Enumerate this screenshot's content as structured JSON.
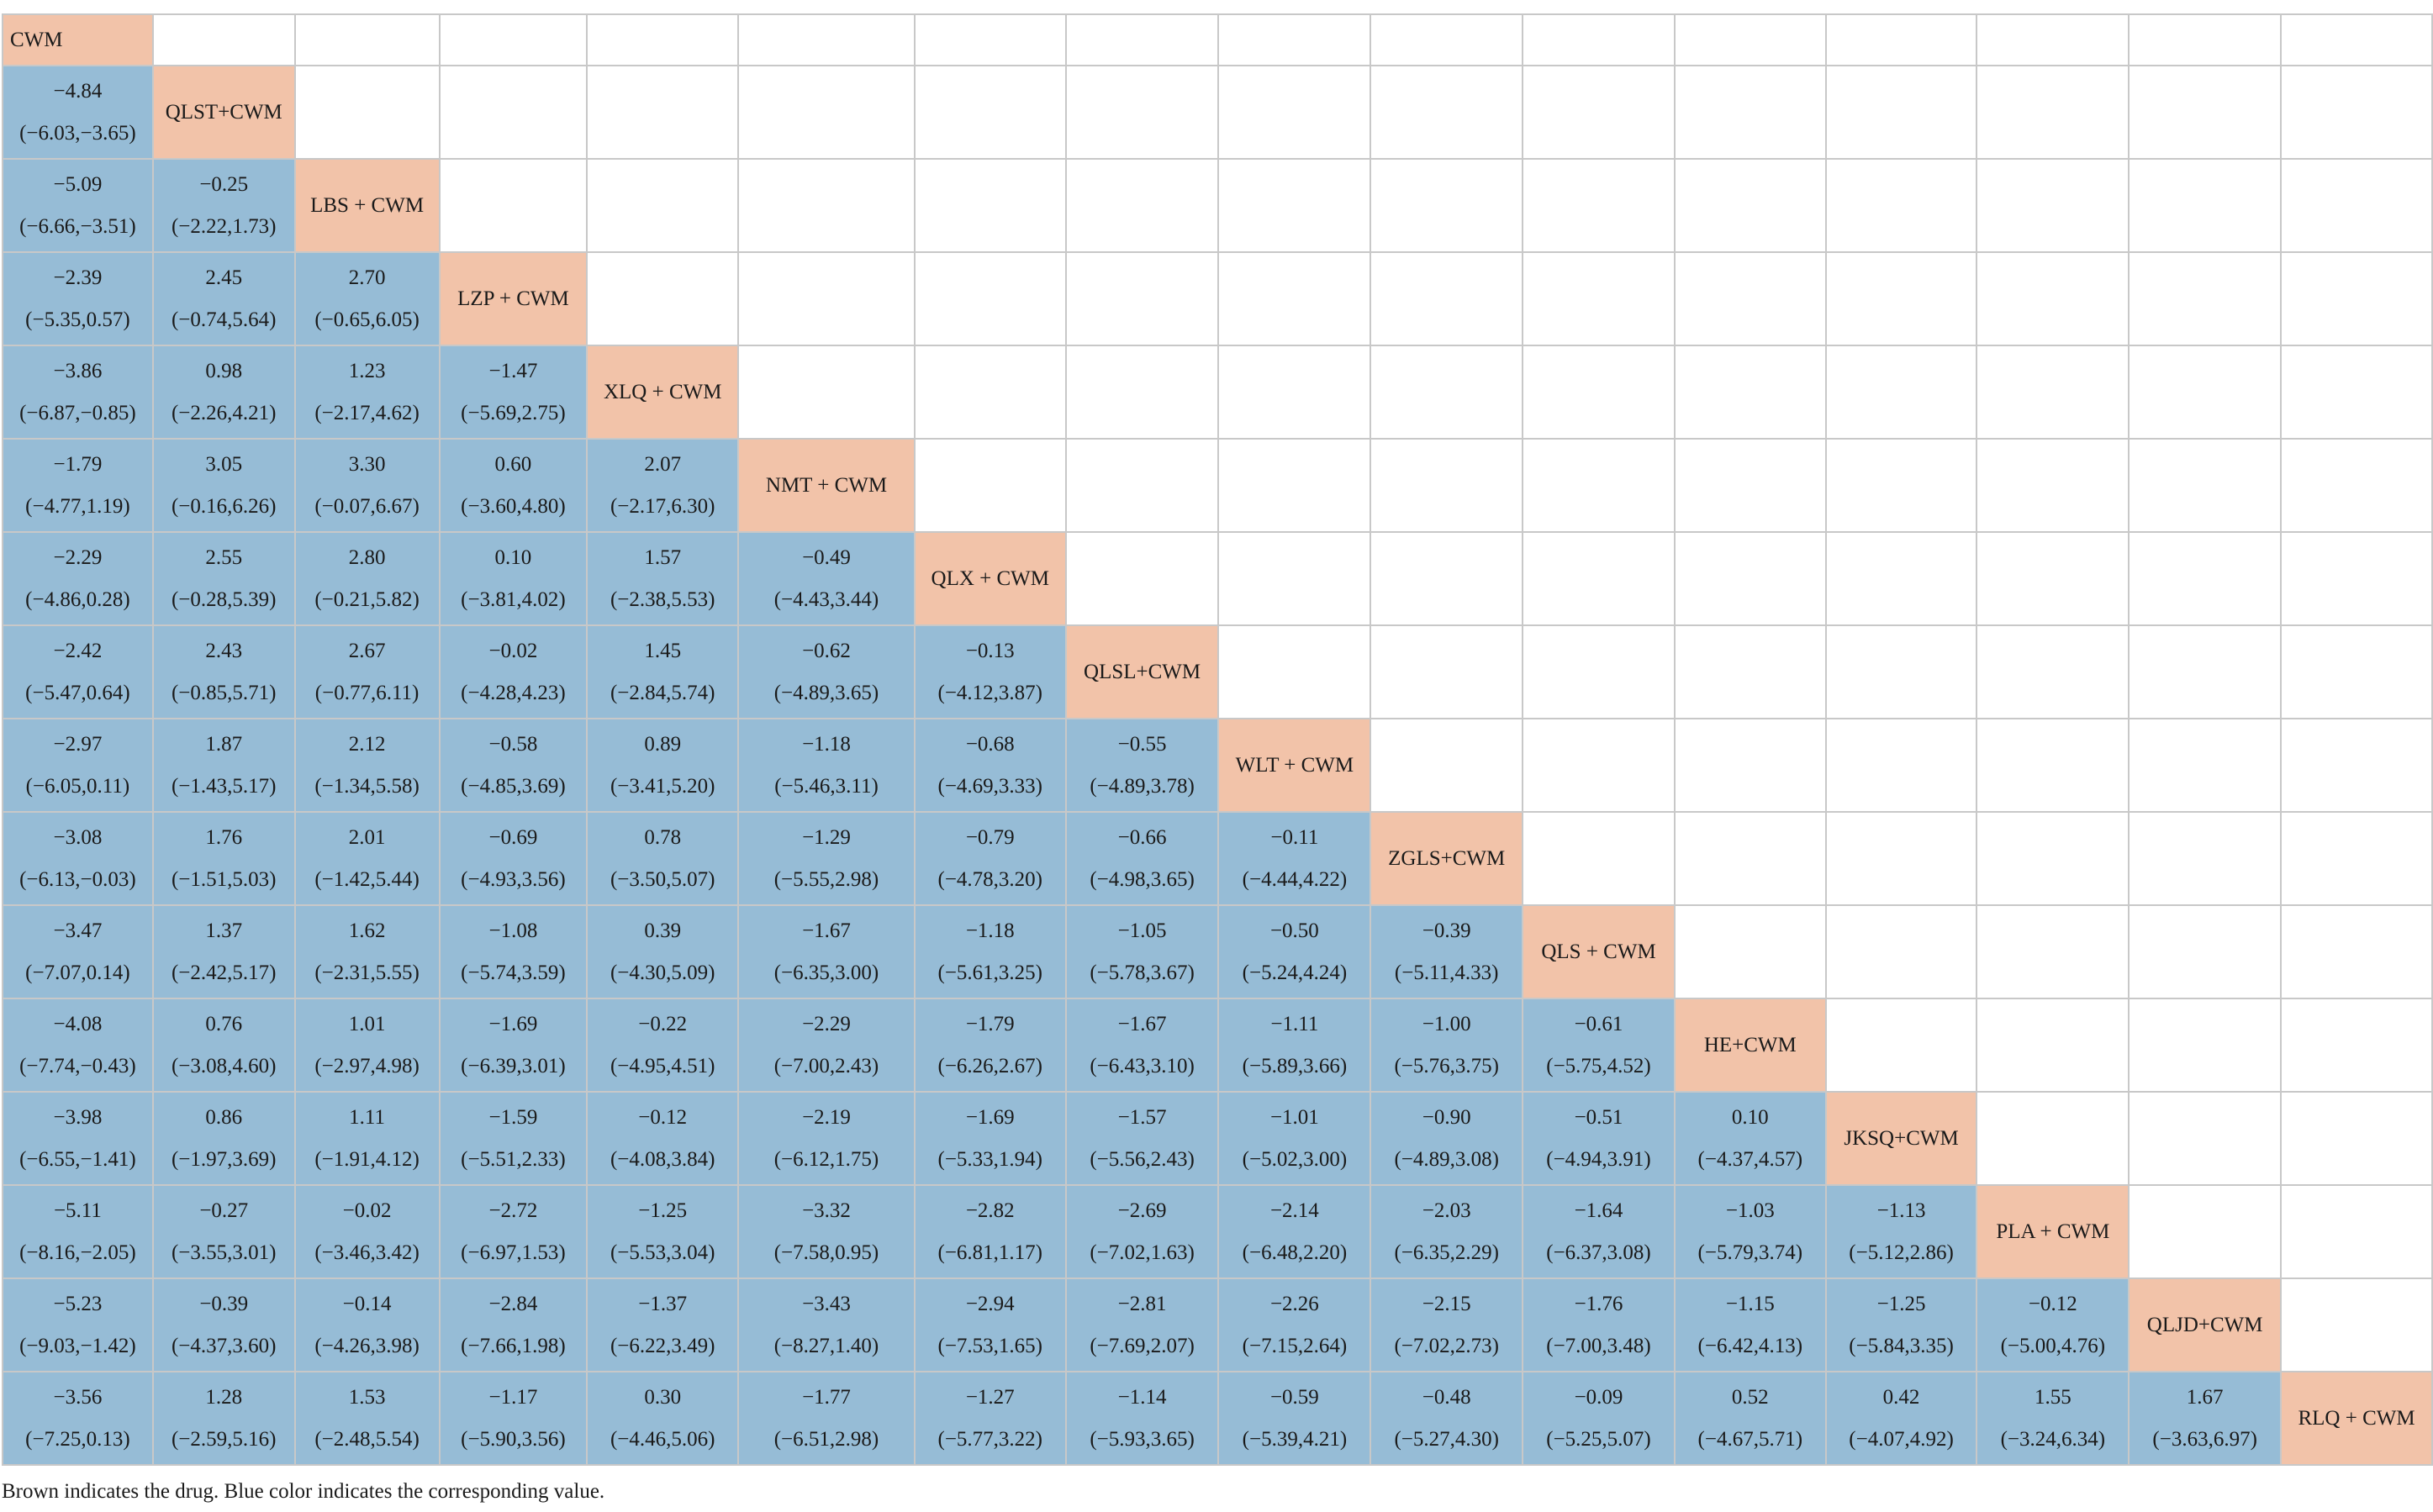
{
  "colors": {
    "drug_cell": "#f2c3a9",
    "value_cell": "#96bcd6",
    "grid": "#c8c8c8"
  },
  "table": {
    "drugs": [
      "CWM",
      "QLST+CWM",
      "LBS + CWM",
      "LZP + CWM",
      "XLQ + CWM",
      "NMT + CWM",
      "QLX + CWM",
      "QLSL+CWM",
      "WLT + CWM",
      "ZGLS+CWM",
      "QLS + CWM",
      "HE+CWM",
      "JKSQ+CWM",
      "PLA + CWM",
      "QLJD+CWM",
      "RLQ + CWM"
    ],
    "values": [
      [],
      [
        [
          "−4.84",
          "(−6.03,−3.65)"
        ]
      ],
      [
        [
          "−5.09",
          "(−6.66,−3.51)"
        ],
        [
          "−0.25",
          "(−2.22,1.73)"
        ]
      ],
      [
        [
          "−2.39",
          "(−5.35,0.57)"
        ],
        [
          "2.45",
          "(−0.74,5.64)"
        ],
        [
          "2.70",
          "(−0.65,6.05)"
        ]
      ],
      [
        [
          "−3.86",
          "(−6.87,−0.85)"
        ],
        [
          "0.98",
          "(−2.26,4.21)"
        ],
        [
          "1.23",
          "(−2.17,4.62)"
        ],
        [
          "−1.47",
          "(−5.69,2.75)"
        ]
      ],
      [
        [
          "−1.79",
          "(−4.77,1.19)"
        ],
        [
          "3.05",
          "(−0.16,6.26)"
        ],
        [
          "3.30",
          "(−0.07,6.67)"
        ],
        [
          "0.60",
          "(−3.60,4.80)"
        ],
        [
          "2.07",
          "(−2.17,6.30)"
        ]
      ],
      [
        [
          "−2.29",
          "(−4.86,0.28)"
        ],
        [
          "2.55",
          "(−0.28,5.39)"
        ],
        [
          "2.80",
          "(−0.21,5.82)"
        ],
        [
          "0.10",
          "(−3.81,4.02)"
        ],
        [
          "1.57",
          "(−2.38,5.53)"
        ],
        [
          "−0.49",
          "(−4.43,3.44)"
        ]
      ],
      [
        [
          "−2.42",
          "(−5.47,0.64)"
        ],
        [
          "2.43",
          "(−0.85,5.71)"
        ],
        [
          "2.67",
          "(−0.77,6.11)"
        ],
        [
          "−0.02",
          "(−4.28,4.23)"
        ],
        [
          "1.45",
          "(−2.84,5.74)"
        ],
        [
          "−0.62",
          "(−4.89,3.65)"
        ],
        [
          "−0.13",
          "(−4.12,3.87)"
        ]
      ],
      [
        [
          "−2.97",
          "(−6.05,0.11)"
        ],
        [
          "1.87",
          "(−1.43,5.17)"
        ],
        [
          "2.12",
          "(−1.34,5.58)"
        ],
        [
          "−0.58",
          "(−4.85,3.69)"
        ],
        [
          "0.89",
          "(−3.41,5.20)"
        ],
        [
          "−1.18",
          "(−5.46,3.11)"
        ],
        [
          "−0.68",
          "(−4.69,3.33)"
        ],
        [
          "−0.55",
          "(−4.89,3.78)"
        ]
      ],
      [
        [
          "−3.08",
          "(−6.13,−0.03)"
        ],
        [
          "1.76",
          "(−1.51,5.03)"
        ],
        [
          "2.01",
          "(−1.42,5.44)"
        ],
        [
          "−0.69",
          "(−4.93,3.56)"
        ],
        [
          "0.78",
          "(−3.50,5.07)"
        ],
        [
          "−1.29",
          "(−5.55,2.98)"
        ],
        [
          "−0.79",
          "(−4.78,3.20)"
        ],
        [
          "−0.66",
          "(−4.98,3.65)"
        ],
        [
          "−0.11",
          "(−4.44,4.22)"
        ]
      ],
      [
        [
          "−3.47",
          "(−7.07,0.14)"
        ],
        [
          "1.37",
          "(−2.42,5.17)"
        ],
        [
          "1.62",
          "(−2.31,5.55)"
        ],
        [
          "−1.08",
          "(−5.74,3.59)"
        ],
        [
          "0.39",
          "(−4.30,5.09)"
        ],
        [
          "−1.67",
          "(−6.35,3.00)"
        ],
        [
          "−1.18",
          "(−5.61,3.25)"
        ],
        [
          "−1.05",
          "(−5.78,3.67)"
        ],
        [
          "−0.50",
          "(−5.24,4.24)"
        ],
        [
          "−0.39",
          "(−5.11,4.33)"
        ]
      ],
      [
        [
          "−4.08",
          "(−7.74,−0.43)"
        ],
        [
          "0.76",
          "(−3.08,4.60)"
        ],
        [
          "1.01",
          "(−2.97,4.98)"
        ],
        [
          "−1.69",
          "(−6.39,3.01)"
        ],
        [
          "−0.22",
          "(−4.95,4.51)"
        ],
        [
          "−2.29",
          "(−7.00,2.43)"
        ],
        [
          "−1.79",
          "(−6.26,2.67)"
        ],
        [
          "−1.67",
          "(−6.43,3.10)"
        ],
        [
          "−1.11",
          "(−5.89,3.66)"
        ],
        [
          "−1.00",
          "(−5.76,3.75)"
        ],
        [
          "−0.61",
          "(−5.75,4.52)"
        ]
      ],
      [
        [
          "−3.98",
          "(−6.55,−1.41)"
        ],
        [
          "0.86",
          "(−1.97,3.69)"
        ],
        [
          "1.11",
          "(−1.91,4.12)"
        ],
        [
          "−1.59",
          "(−5.51,2.33)"
        ],
        [
          "−0.12",
          "(−4.08,3.84)"
        ],
        [
          "−2.19",
          "(−6.12,1.75)"
        ],
        [
          "−1.69",
          "(−5.33,1.94)"
        ],
        [
          "−1.57",
          "(−5.56,2.43)"
        ],
        [
          "−1.01",
          "(−5.02,3.00)"
        ],
        [
          "−0.90",
          "(−4.89,3.08)"
        ],
        [
          "−0.51",
          "(−4.94,3.91)"
        ],
        [
          "0.10",
          "(−4.37,4.57)"
        ]
      ],
      [
        [
          "−5.11",
          "(−8.16,−2.05)"
        ],
        [
          "−0.27",
          "(−3.55,3.01)"
        ],
        [
          "−0.02",
          "(−3.46,3.42)"
        ],
        [
          "−2.72",
          "(−6.97,1.53)"
        ],
        [
          "−1.25",
          "(−5.53,3.04)"
        ],
        [
          "−3.32",
          "(−7.58,0.95)"
        ],
        [
          "−2.82",
          "(−6.81,1.17)"
        ],
        [
          "−2.69",
          "(−7.02,1.63)"
        ],
        [
          "−2.14",
          "(−6.48,2.20)"
        ],
        [
          "−2.03",
          "(−6.35,2.29)"
        ],
        [
          "−1.64",
          "(−6.37,3.08)"
        ],
        [
          "−1.03",
          "(−5.79,3.74)"
        ],
        [
          "−1.13",
          "(−5.12,2.86)"
        ]
      ],
      [
        [
          "−5.23",
          "(−9.03,−1.42)"
        ],
        [
          "−0.39",
          "(−4.37,3.60)"
        ],
        [
          "−0.14",
          "(−4.26,3.98)"
        ],
        [
          "−2.84",
          "(−7.66,1.98)"
        ],
        [
          "−1.37",
          "(−6.22,3.49)"
        ],
        [
          "−3.43",
          "(−8.27,1.40)"
        ],
        [
          "−2.94",
          "(−7.53,1.65)"
        ],
        [
          "−2.81",
          "(−7.69,2.07)"
        ],
        [
          "−2.26",
          "(−7.15,2.64)"
        ],
        [
          "−2.15",
          "(−7.02,2.73)"
        ],
        [
          "−1.76",
          "(−7.00,3.48)"
        ],
        [
          "−1.15",
          "(−6.42,4.13)"
        ],
        [
          "−1.25",
          "(−5.84,3.35)"
        ],
        [
          "−0.12",
          "(−5.00,4.76)"
        ]
      ],
      [
        [
          "−3.56",
          "(−7.25,0.13)"
        ],
        [
          "1.28",
          "(−2.59,5.16)"
        ],
        [
          "1.53",
          "(−2.48,5.54)"
        ],
        [
          "−1.17",
          "(−5.90,3.56)"
        ],
        [
          "0.30",
          "(−4.46,5.06)"
        ],
        [
          "−1.77",
          "(−6.51,2.98)"
        ],
        [
          "−1.27",
          "(−5.77,3.22)"
        ],
        [
          "−1.14",
          "(−5.93,3.65)"
        ],
        [
          "−0.59",
          "(−5.39,4.21)"
        ],
        [
          "−0.48",
          "(−5.27,4.30)"
        ],
        [
          "−0.09",
          "(−5.25,5.07)"
        ],
        [
          "0.52",
          "(−4.67,5.71)"
        ],
        [
          "0.42",
          "(−4.07,4.92)"
        ],
        [
          "1.55",
          "(−3.24,6.34)"
        ],
        [
          "1.67",
          "(−3.63,6.97)"
        ]
      ]
    ]
  },
  "footnote": "Brown indicates the drug. Blue color indicates the corresponding value."
}
